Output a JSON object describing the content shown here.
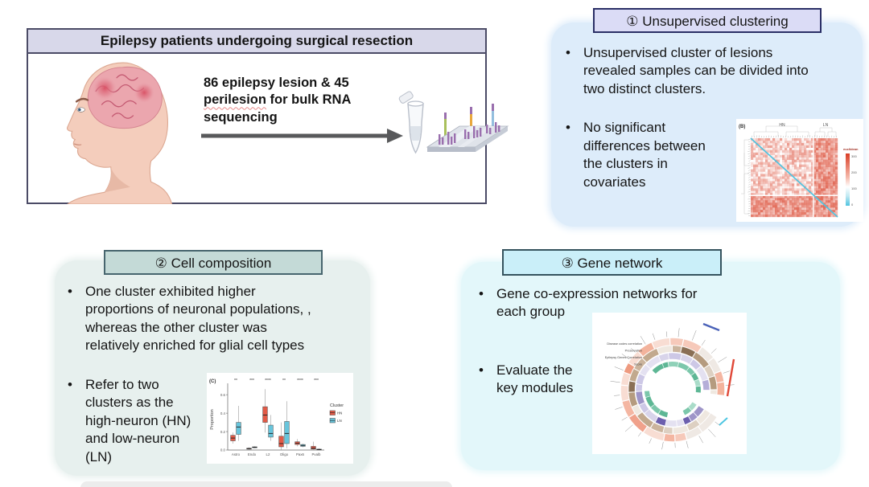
{
  "study": {
    "title": "Epilepsy patients undergoing surgical resection",
    "desc_line1": "86 epilepsy lesion & 45",
    "desc_misspelled": "perilesion",
    "desc_line2_rest": " for bulk RNA",
    "desc_line3": "sequencing"
  },
  "clustering": {
    "title": "① Unsupervised clustering",
    "bullets": [
      "Unsupervised cluster of lesions\nrevealed samples can be divided into\ntwo distinct clusters.",
      "No significant\ndifferences between\nthe clusters in\ncovariates"
    ],
    "heatmap": {
      "panel_label": "(B)",
      "col_groups": [
        "HN",
        "LN"
      ],
      "legend_label": "euclidean",
      "legend_ticks": [
        "300",
        "200",
        "100",
        "0"
      ],
      "high_color": "#d93e26",
      "low_color": "#4fc3e0"
    }
  },
  "cell_composition": {
    "title": "② Cell composition",
    "bullets": [
      "One cluster exhibited higher\nproportions of neuronal populations, ,\nwhereas the other cluster was\nrelatively enriched for glial cell types",
      "Refer to two\nclusters as the\nhigh-neuron (HN)\nand low-neuron\n(LN)"
    ],
    "chart_data": {
      "type": "boxplot",
      "panel_label": "(C)",
      "categories": [
        "Astro",
        "Endo",
        "L2",
        "Oligo",
        "Pax6",
        "Pvalb"
      ],
      "significance": [
        "**",
        "***",
        "****",
        "**",
        "****",
        "***"
      ],
      "ylabel": "Proportion",
      "yticks": [
        0.0,
        0.2,
        0.4,
        0.6
      ],
      "ylim": [
        0,
        0.68
      ],
      "legend_title": "Cluster",
      "series": [
        {
          "name": "HN",
          "color": "#e25a47",
          "boxes": [
            [
              0.07,
              0.1,
              0.13,
              0.16,
              0.19
            ],
            [
              0.005,
              0.01,
              0.015,
              0.02,
              0.03
            ],
            [
              0.19,
              0.3,
              0.38,
              0.47,
              0.66
            ],
            [
              0.0,
              0.035,
              0.07,
              0.15,
              0.3
            ],
            [
              0.04,
              0.06,
              0.075,
              0.09,
              0.12
            ],
            [
              0.0,
              0.01,
              0.02,
              0.04,
              0.09
            ]
          ]
        },
        {
          "name": "LN",
          "color": "#67c5dc",
          "boxes": [
            [
              0.1,
              0.17,
              0.25,
              0.3,
              0.48
            ],
            [
              0.02,
              0.025,
              0.03,
              0.035,
              0.04
            ],
            [
              0.1,
              0.14,
              0.18,
              0.27,
              0.38
            ],
            [
              0.02,
              0.07,
              0.18,
              0.31,
              0.53
            ],
            [
              0.03,
              0.04,
              0.05,
              0.06,
              0.07
            ],
            [
              0.0,
              0.003,
              0.005,
              0.01,
              0.02
            ]
          ]
        }
      ]
    }
  },
  "gene_network": {
    "title": "③ Gene network",
    "bullets": [
      "Gene co-expression networks for\neach group",
      "Evaluate the\nkey modules"
    ],
    "circos": {
      "track_labels": [
        "Disease codes correlation",
        "Preservation",
        "Epilepsy Genes Correlation",
        "Score"
      ],
      "ring_palettes": [
        [
          "#f0a18b",
          "#f6c9ba",
          "#ee9a7f",
          "#f8ddd3",
          "#f3b39c",
          "#efe9e4",
          "#f4b6a2"
        ],
        [
          "#b59b7f",
          "#8a6f55",
          "#cbb49d",
          "#ddd0c2",
          "#efe8e0",
          "#c2a98e"
        ],
        [
          "#6c5fae",
          "#b5aed8",
          "#cdc8e6",
          "#e4e1f1",
          "#9e95c8",
          "#d8d4ea"
        ],
        [
          "#7cc7ab",
          "#a9dcc9",
          "#5eb795",
          "#8fd1b8"
        ]
      ],
      "accent_colors": [
        "#4a62b8",
        "#e04838",
        "#4ec6e2"
      ]
    }
  },
  "theme": {
    "frame-border": "#4b4b66",
    "study-header-bg": "#d8d8ea",
    "clustering-panel-bg": "#ddecfa",
    "clustering-title-bg": "#dbdcf6",
    "clustering-title-border": "#2a2f66",
    "cell-panel-bg": "#e7f0ee",
    "cell-title-bg": "#c4dad7",
    "cell-title-border": "#47656e",
    "gene-panel-bg": "#e3f7fa",
    "gene-title-bg": "#caeff9",
    "gene-title-border": "#35535e",
    "arrow-color": "#58595b"
  }
}
